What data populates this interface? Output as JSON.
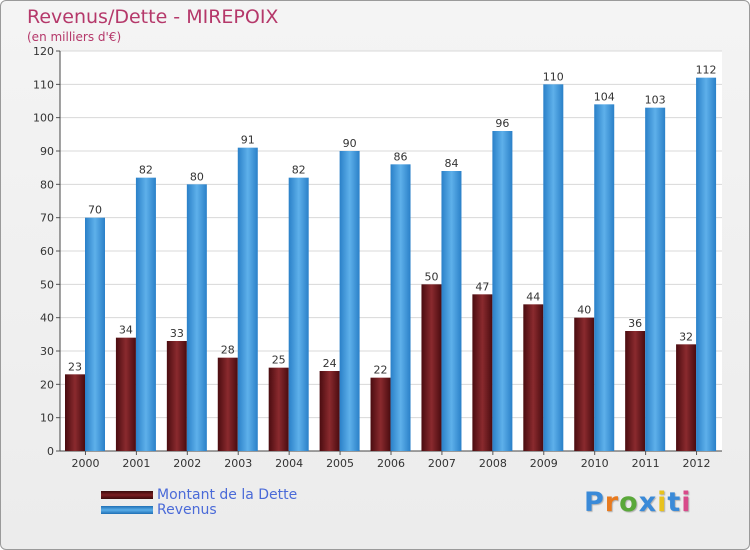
{
  "chart_data": {
    "type": "bar",
    "title": "Revenus/Dette - MIREPOIX",
    "subtitle": "(en milliers d'€)",
    "categories": [
      "2000",
      "2001",
      "2002",
      "2003",
      "2004",
      "2005",
      "2006",
      "2007",
      "2008",
      "2009",
      "2010",
      "2011",
      "2012"
    ],
    "series": [
      {
        "name": "Montant de la Dette",
        "color": "#7a1e22",
        "values": [
          23,
          34,
          33,
          28,
          25,
          24,
          22,
          50,
          47,
          44,
          40,
          36,
          32
        ]
      },
      {
        "name": "Revenus",
        "color": "#3d94d8",
        "values": [
          70,
          82,
          80,
          91,
          82,
          90,
          86,
          84,
          96,
          110,
          104,
          103,
          112
        ]
      }
    ],
    "ylim": [
      0,
      120
    ],
    "yticks": [
      0,
      10,
      20,
      30,
      40,
      50,
      60,
      70,
      80,
      90,
      100,
      110,
      120
    ],
    "grid": true,
    "legend": "bottom-left"
  },
  "logo": {
    "text": "Proxiti",
    "colors": [
      "#3a8ad8",
      "#e87a1e",
      "#5aa83a",
      "#3a8ad8",
      "#e8c21e",
      "#3a8ad8",
      "#d84a8a"
    ]
  }
}
